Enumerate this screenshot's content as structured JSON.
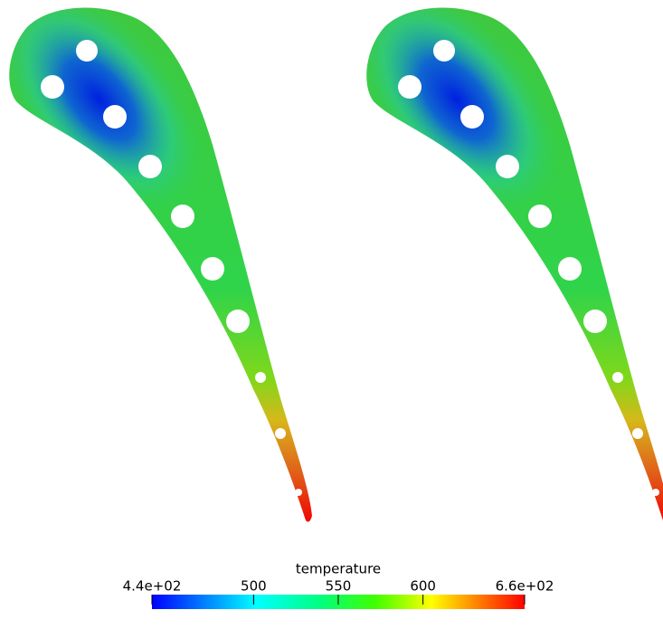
{
  "colorbar": {
    "title": "temperature",
    "range": [
      440,
      660
    ],
    "ticks": [
      {
        "value": 440,
        "label": "4.4e+02"
      },
      500,
      550,
      600,
      {
        "value": 660,
        "label": "6.6e+02"
      }
    ]
  }
}
